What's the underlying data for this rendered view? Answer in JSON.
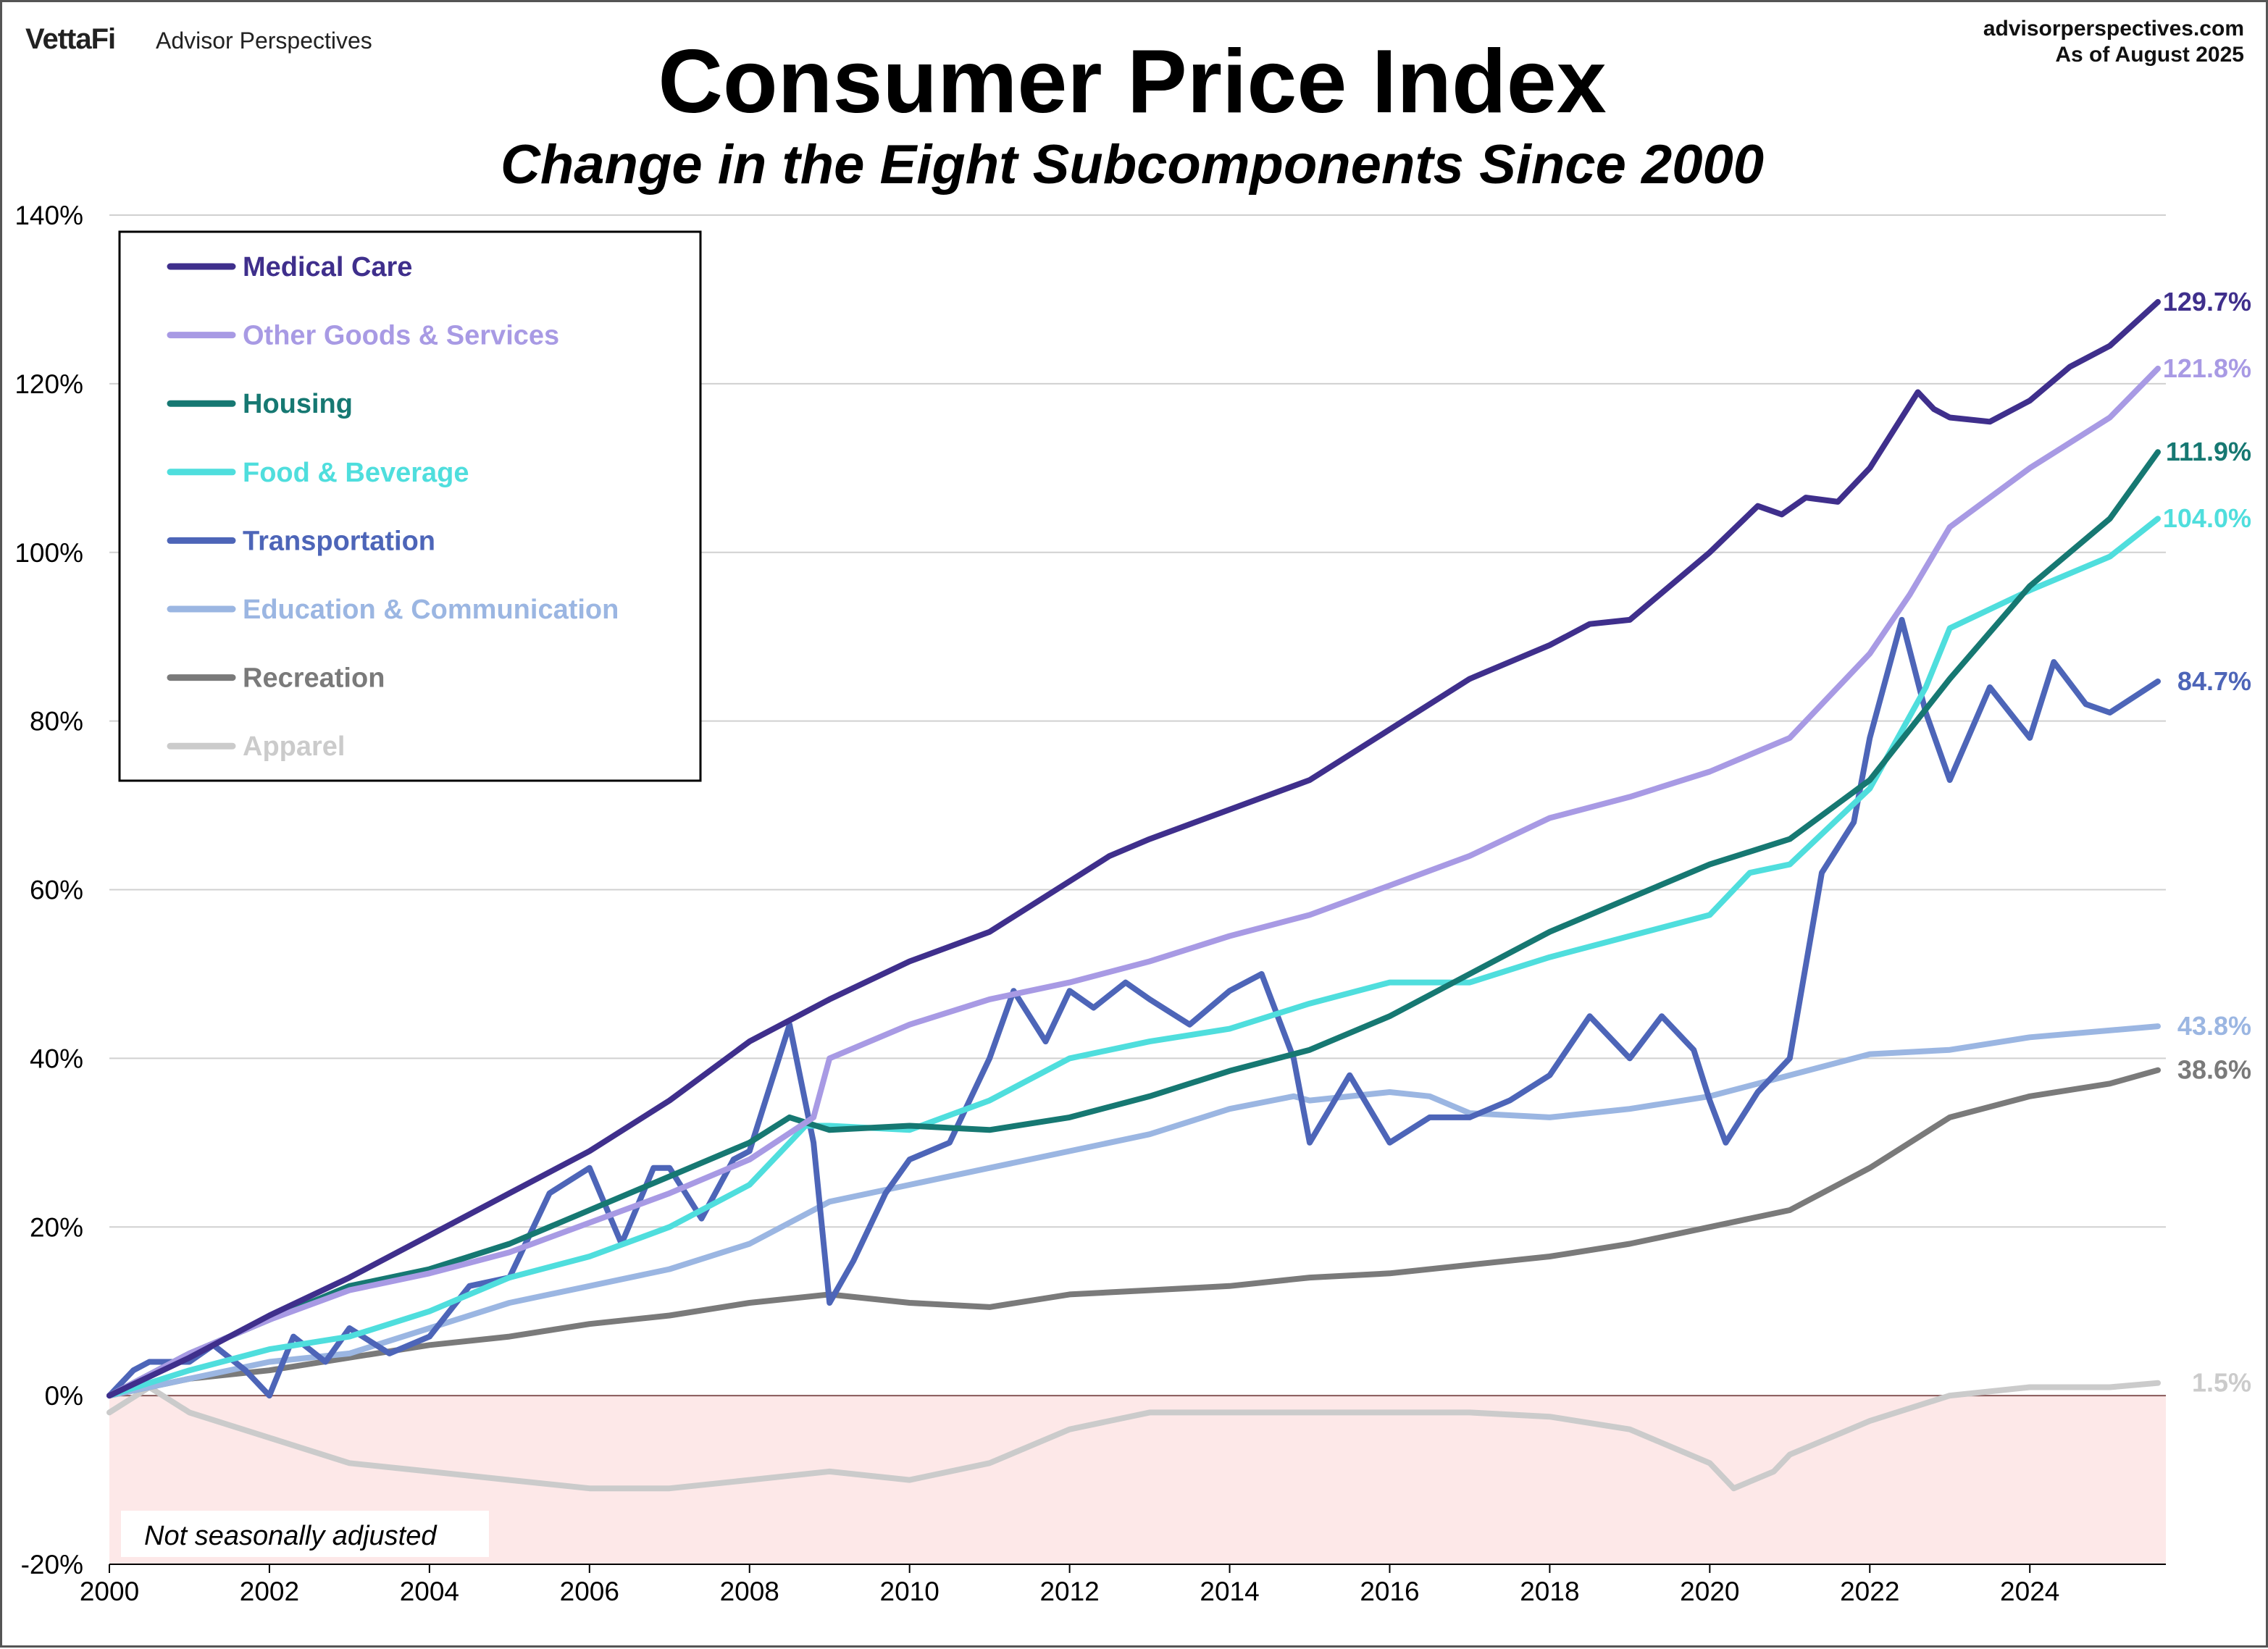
{
  "header": {
    "brand": "VettaFi",
    "brand_sub": "Advisor Perspectives",
    "site": "advisorperspectives.com",
    "as_of": "As of August 2025"
  },
  "note": "Not seasonally adjusted",
  "chart_data": {
    "type": "line",
    "title": "Consumer Price Index",
    "subtitle": "Change in the Eight Subcomponents Since 2000",
    "xlabel": "",
    "ylabel": "",
    "xlim": [
      2000,
      2025.7
    ],
    "ylim": [
      -20,
      140
    ],
    "y_ticks": [
      -20,
      0,
      20,
      40,
      60,
      80,
      100,
      120,
      140
    ],
    "y_tick_labels": [
      "-20%",
      "0%",
      "20%",
      "40%",
      "60%",
      "80%",
      "100%",
      "120%",
      "140%"
    ],
    "x_ticks": [
      2000,
      2002,
      2004,
      2006,
      2008,
      2010,
      2012,
      2014,
      2016,
      2018,
      2020,
      2022,
      2024
    ],
    "x_tick_labels": [
      "2000",
      "2002",
      "2004",
      "2006",
      "2008",
      "2010",
      "2012",
      "2014",
      "2016",
      "2018",
      "2020",
      "2022",
      "2024"
    ],
    "grid": "horizontal",
    "legend_position": "top-left",
    "negative_region_color": "#fde8e8",
    "series": [
      {
        "name": "Medical Care",
        "color": "#3f2f8c",
        "end_label": "129.7%",
        "points": [
          [
            2000,
            0
          ],
          [
            2001,
            4.5
          ],
          [
            2002,
            9.5
          ],
          [
            2003,
            14
          ],
          [
            2004,
            19
          ],
          [
            2005,
            24
          ],
          [
            2006,
            29
          ],
          [
            2007,
            35
          ],
          [
            2008,
            42
          ],
          [
            2009,
            47
          ],
          [
            2010,
            51.5
          ],
          [
            2011,
            55
          ],
          [
            2012,
            61
          ],
          [
            2012.5,
            64
          ],
          [
            2013,
            66
          ],
          [
            2014,
            69.5
          ],
          [
            2015,
            73
          ],
          [
            2016,
            79
          ],
          [
            2017,
            85
          ],
          [
            2018,
            89
          ],
          [
            2018.5,
            91.5
          ],
          [
            2019,
            92
          ],
          [
            2020,
            100
          ],
          [
            2020.6,
            105.5
          ],
          [
            2020.9,
            104.5
          ],
          [
            2021.2,
            106.5
          ],
          [
            2021.6,
            106
          ],
          [
            2022,
            110
          ],
          [
            2022.6,
            119
          ],
          [
            2022.8,
            117
          ],
          [
            2023,
            116
          ],
          [
            2023.5,
            115.5
          ],
          [
            2024,
            118
          ],
          [
            2024.5,
            122
          ],
          [
            2025,
            124.5
          ],
          [
            2025.6,
            129.7
          ]
        ]
      },
      {
        "name": "Other Goods & Services",
        "color": "#a89ae4",
        "end_label": "121.8%",
        "points": [
          [
            2000,
            0
          ],
          [
            2001,
            5
          ],
          [
            2002,
            9
          ],
          [
            2003,
            12.5
          ],
          [
            2004,
            14.5
          ],
          [
            2005,
            17
          ],
          [
            2006,
            20.5
          ],
          [
            2007,
            24
          ],
          [
            2008,
            28
          ],
          [
            2008.8,
            33
          ],
          [
            2009,
            40
          ],
          [
            2010,
            44
          ],
          [
            2011,
            47
          ],
          [
            2012,
            49
          ],
          [
            2013,
            51.5
          ],
          [
            2014,
            54.5
          ],
          [
            2015,
            57
          ],
          [
            2016,
            60.5
          ],
          [
            2017,
            64
          ],
          [
            2018,
            68.5
          ],
          [
            2019,
            71
          ],
          [
            2020,
            74
          ],
          [
            2021,
            78
          ],
          [
            2022,
            88
          ],
          [
            2022.5,
            95
          ],
          [
            2023,
            103
          ],
          [
            2024,
            110
          ],
          [
            2025,
            116
          ],
          [
            2025.6,
            121.8
          ]
        ]
      },
      {
        "name": "Housing",
        "color": "#167872",
        "end_label": "111.9%",
        "points": [
          [
            2000,
            0
          ],
          [
            2001,
            5
          ],
          [
            2002,
            9
          ],
          [
            2003,
            13
          ],
          [
            2004,
            15
          ],
          [
            2005,
            18
          ],
          [
            2006,
            22
          ],
          [
            2007,
            26
          ],
          [
            2008,
            30
          ],
          [
            2008.5,
            33
          ],
          [
            2009,
            31.5
          ],
          [
            2010,
            32
          ],
          [
            2011,
            31.5
          ],
          [
            2012,
            33
          ],
          [
            2013,
            35.5
          ],
          [
            2014,
            38.5
          ],
          [
            2015,
            41
          ],
          [
            2016,
            45
          ],
          [
            2017,
            50
          ],
          [
            2018,
            55
          ],
          [
            2019,
            59
          ],
          [
            2020,
            63
          ],
          [
            2021,
            66
          ],
          [
            2022,
            73
          ],
          [
            2023,
            85
          ],
          [
            2024,
            96
          ],
          [
            2025,
            104
          ],
          [
            2025.6,
            111.9
          ]
        ]
      },
      {
        "name": "Food & Beverage",
        "color": "#4fdedd",
        "end_label": "104.0%",
        "points": [
          [
            2000,
            0
          ],
          [
            2001,
            3
          ],
          [
            2002,
            5.5
          ],
          [
            2003,
            7
          ],
          [
            2004,
            10
          ],
          [
            2005,
            14
          ],
          [
            2006,
            16.5
          ],
          [
            2007,
            20
          ],
          [
            2008,
            25
          ],
          [
            2008.7,
            32
          ],
          [
            2009,
            32
          ],
          [
            2010,
            31.5
          ],
          [
            2011,
            35
          ],
          [
            2012,
            40
          ],
          [
            2013,
            42
          ],
          [
            2014,
            43.5
          ],
          [
            2015,
            46.5
          ],
          [
            2016,
            49
          ],
          [
            2017,
            49
          ],
          [
            2018,
            52
          ],
          [
            2019,
            54.5
          ],
          [
            2020,
            57
          ],
          [
            2020.5,
            62
          ],
          [
            2021,
            63
          ],
          [
            2022,
            72
          ],
          [
            2022.7,
            84
          ],
          [
            2023,
            91
          ],
          [
            2024,
            95.5
          ],
          [
            2025,
            99.5
          ],
          [
            2025.6,
            104
          ]
        ]
      },
      {
        "name": "Transportation",
        "color": "#4d65b8",
        "end_label": "84.7%",
        "points": [
          [
            2000,
            0
          ],
          [
            2000.3,
            3
          ],
          [
            2000.5,
            4
          ],
          [
            2001,
            4
          ],
          [
            2001.3,
            6
          ],
          [
            2001.7,
            3
          ],
          [
            2002,
            0
          ],
          [
            2002.3,
            7
          ],
          [
            2002.7,
            4
          ],
          [
            2003,
            8
          ],
          [
            2003.5,
            5
          ],
          [
            2004,
            7
          ],
          [
            2004.5,
            13
          ],
          [
            2005,
            14
          ],
          [
            2005.5,
            24
          ],
          [
            2006,
            27
          ],
          [
            2006.4,
            18
          ],
          [
            2006.8,
            27
          ],
          [
            2007,
            27
          ],
          [
            2007.4,
            21
          ],
          [
            2007.8,
            28
          ],
          [
            2008,
            29
          ],
          [
            2008.5,
            44
          ],
          [
            2008.8,
            30
          ],
          [
            2009,
            11
          ],
          [
            2009.3,
            16
          ],
          [
            2009.7,
            24
          ],
          [
            2010,
            28
          ],
          [
            2010.5,
            30
          ],
          [
            2011,
            40
          ],
          [
            2011.3,
            48
          ],
          [
            2011.7,
            42
          ],
          [
            2012,
            48
          ],
          [
            2012.3,
            46
          ],
          [
            2012.7,
            49
          ],
          [
            2013,
            47
          ],
          [
            2013.5,
            44
          ],
          [
            2014,
            48
          ],
          [
            2014.4,
            50
          ],
          [
            2014.8,
            40
          ],
          [
            2015,
            30
          ],
          [
            2015.5,
            38
          ],
          [
            2016,
            30
          ],
          [
            2016.5,
            33
          ],
          [
            2017,
            33
          ],
          [
            2017.5,
            35
          ],
          [
            2018,
            38
          ],
          [
            2018.5,
            45
          ],
          [
            2019,
            40
          ],
          [
            2019.4,
            45
          ],
          [
            2019.8,
            41
          ],
          [
            2020,
            35
          ],
          [
            2020.2,
            30
          ],
          [
            2020.6,
            36
          ],
          [
            2021,
            40
          ],
          [
            2021.4,
            62
          ],
          [
            2021.8,
            68
          ],
          [
            2022,
            78
          ],
          [
            2022.4,
            92
          ],
          [
            2022.7,
            81
          ],
          [
            2023,
            73
          ],
          [
            2023.5,
            84
          ],
          [
            2024,
            78
          ],
          [
            2024.3,
            87
          ],
          [
            2024.7,
            82
          ],
          [
            2025,
            81
          ],
          [
            2025.6,
            84.7
          ]
        ]
      },
      {
        "name": "Education & Communication",
        "color": "#9bb6e2",
        "end_label": "43.8%",
        "points": [
          [
            2000,
            0
          ],
          [
            2001,
            2
          ],
          [
            2002,
            4
          ],
          [
            2003,
            5
          ],
          [
            2004,
            8
          ],
          [
            2005,
            11
          ],
          [
            2006,
            13
          ],
          [
            2007,
            15
          ],
          [
            2008,
            18
          ],
          [
            2009,
            23
          ],
          [
            2010,
            25
          ],
          [
            2011,
            27
          ],
          [
            2012,
            29
          ],
          [
            2013,
            31
          ],
          [
            2014,
            34
          ],
          [
            2014.8,
            35.5
          ],
          [
            2015,
            35
          ],
          [
            2016,
            36
          ],
          [
            2016.5,
            35.5
          ],
          [
            2017,
            33.5
          ],
          [
            2018,
            33
          ],
          [
            2019,
            34
          ],
          [
            2020,
            35.5
          ],
          [
            2021,
            38
          ],
          [
            2022,
            40.5
          ],
          [
            2023,
            41
          ],
          [
            2024,
            42.5
          ],
          [
            2025.6,
            43.8
          ]
        ]
      },
      {
        "name": "Recreation",
        "color": "#7a7a7a",
        "end_label": "38.6%",
        "points": [
          [
            2000,
            0
          ],
          [
            2001,
            2
          ],
          [
            2002,
            3
          ],
          [
            2003,
            4.5
          ],
          [
            2004,
            6
          ],
          [
            2005,
            7
          ],
          [
            2006,
            8.5
          ],
          [
            2007,
            9.5
          ],
          [
            2008,
            11
          ],
          [
            2009,
            12
          ],
          [
            2010,
            11
          ],
          [
            2011,
            10.5
          ],
          [
            2012,
            12
          ],
          [
            2013,
            12.5
          ],
          [
            2014,
            13
          ],
          [
            2015,
            14
          ],
          [
            2016,
            14.5
          ],
          [
            2017,
            15.5
          ],
          [
            2018,
            16.5
          ],
          [
            2019,
            18
          ],
          [
            2020,
            20
          ],
          [
            2021,
            22
          ],
          [
            2022,
            27
          ],
          [
            2023,
            33
          ],
          [
            2024,
            35.5
          ],
          [
            2025,
            37
          ],
          [
            2025.6,
            38.6
          ]
        ]
      },
      {
        "name": "Apparel",
        "color": "#cbcbcb",
        "end_label": "1.5%",
        "points": [
          [
            2000,
            -2
          ],
          [
            2000.5,
            1
          ],
          [
            2001,
            -2
          ],
          [
            2002,
            -5
          ],
          [
            2003,
            -8
          ],
          [
            2004,
            -9
          ],
          [
            2005,
            -10
          ],
          [
            2006,
            -11
          ],
          [
            2007,
            -11
          ],
          [
            2008,
            -10
          ],
          [
            2009,
            -9
          ],
          [
            2010,
            -10
          ],
          [
            2011,
            -8
          ],
          [
            2012,
            -4
          ],
          [
            2013,
            -2
          ],
          [
            2014,
            -2
          ],
          [
            2015,
            -2
          ],
          [
            2016,
            -2
          ],
          [
            2017,
            -2
          ],
          [
            2018,
            -2.5
          ],
          [
            2019,
            -4
          ],
          [
            2020,
            -8
          ],
          [
            2020.3,
            -11
          ],
          [
            2020.8,
            -9
          ],
          [
            2021,
            -7
          ],
          [
            2022,
            -3
          ],
          [
            2023,
            0
          ],
          [
            2024,
            1
          ],
          [
            2025,
            1
          ],
          [
            2025.6,
            1.5
          ]
        ]
      }
    ]
  }
}
